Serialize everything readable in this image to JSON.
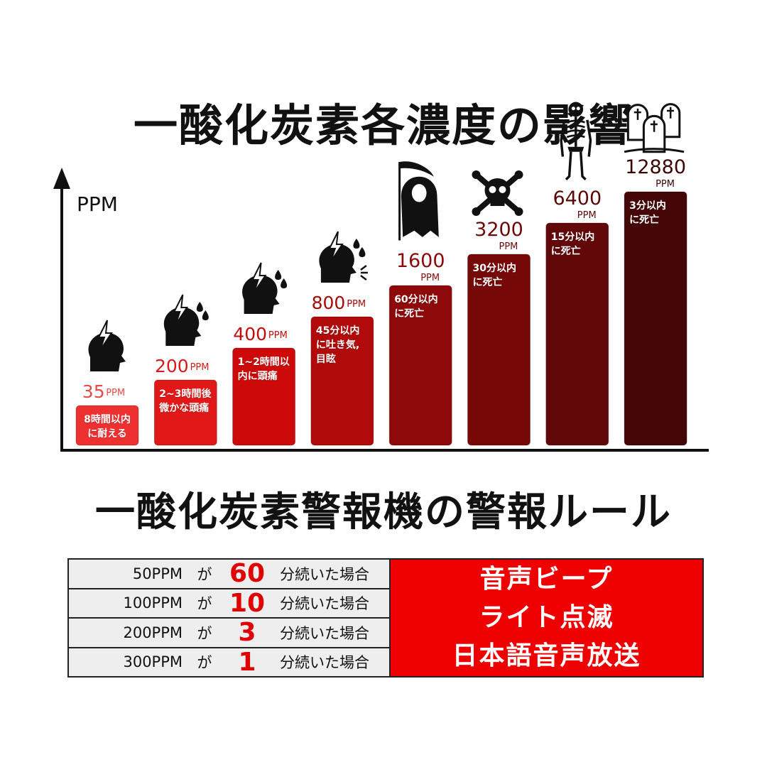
{
  "title": "一酸化炭素各濃度の影響",
  "chart_data": {
    "type": "bar",
    "ylabel": "PPM",
    "categories": [
      "35",
      "200",
      "400",
      "800",
      "1600",
      "3200",
      "6400",
      "12880"
    ],
    "unit": "PPM",
    "values": [
      35,
      200,
      400,
      800,
      1600,
      3200,
      6400,
      12880
    ],
    "captions": [
      "8時間以内\nに耐える",
      "2~3時間後\n微かな頭痛",
      "1~2時間以\n内に頭痛",
      "45分以内\nに吐き気,\n目眩",
      "60分以内\nに死亡",
      "30分以内\nに死亡",
      "15分以内\nに死亡",
      "3分以内\nに死亡"
    ],
    "icons": [
      "headache-icon",
      "headache-drop-icon",
      "headache-drop-icon",
      "headache-nausea-icon",
      "grim-reaper-icon",
      "skull-crossbones-icon",
      "skeleton-icon",
      "gravestones-icon"
    ],
    "colors": [
      "#ee3030",
      "#e01818",
      "#cc0a0a",
      "#b00a0a",
      "#8e0a0a",
      "#760808",
      "#620808",
      "#440606"
    ],
    "value_colors": [
      "#e84a4a",
      "#d81a1a",
      "#c40c0c",
      "#a80a0a",
      "#8a0a0a",
      "#6e0808",
      "#5a0808",
      "#3a0606"
    ]
  },
  "rules": {
    "title": "一酸化炭素警報機の警報ルール",
    "rows": [
      {
        "ppm": "50PPM",
        "ga": "が",
        "minutes": "60",
        "tail": "分続いた場合"
      },
      {
        "ppm": "100PPM",
        "ga": "が",
        "minutes": "10",
        "tail": "分続いた場合"
      },
      {
        "ppm": "200PPM",
        "ga": "が",
        "minutes": "3",
        "tail": "分続いた場合"
      },
      {
        "ppm": "300PPM",
        "ga": "が",
        "minutes": "1",
        "tail": "分続いた場合"
      }
    ],
    "actions": [
      "音声ビープ",
      "ライト点滅",
      "日本語音声放送"
    ],
    "action_bg": "#ee0000"
  }
}
